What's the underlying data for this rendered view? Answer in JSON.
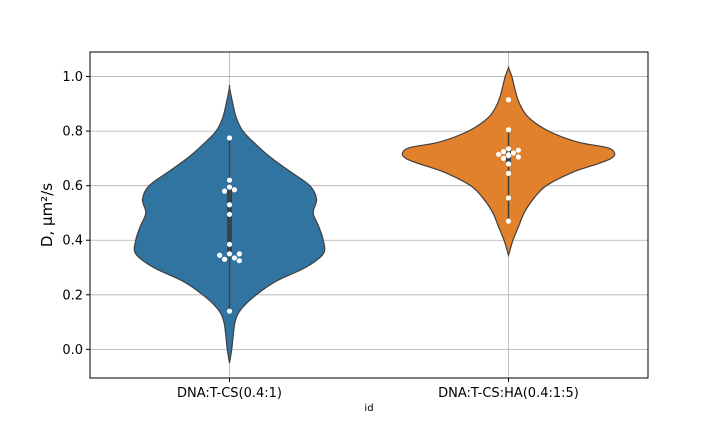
{
  "chart_data": {
    "type": "violin",
    "categories": [
      "DNA:T-CS(0.4:1)",
      "DNA:T-CS:HA(0.4:1:5)"
    ],
    "xlabel": "id",
    "ylabel": "D, µm²/s",
    "ylim": [
      -0.105,
      1.09
    ],
    "yticks": [
      0.0,
      0.2,
      0.4,
      0.6,
      0.8,
      1.0
    ],
    "ytick_labels": [
      "0.0",
      "0.2",
      "0.4",
      "0.6",
      "0.8",
      "1.0"
    ],
    "grid": true,
    "series": [
      {
        "category": "DNA:T-CS(0.4:1)",
        "color": "#3274a1",
        "points": [
          0.775,
          0.62,
          0.595,
          0.585,
          0.58,
          0.53,
          0.495,
          0.385,
          0.35,
          0.35,
          0.345,
          0.335,
          0.33,
          0.325,
          0.14
        ],
        "density": [
          [
            -0.05,
            0.0
          ],
          [
            0.0,
            0.02
          ],
          [
            0.1,
            0.05
          ],
          [
            0.15,
            0.11
          ],
          [
            0.2,
            0.24
          ],
          [
            0.25,
            0.42
          ],
          [
            0.3,
            0.68
          ],
          [
            0.35,
            0.84
          ],
          [
            0.4,
            0.84
          ],
          [
            0.45,
            0.8
          ],
          [
            0.5,
            0.75
          ],
          [
            0.55,
            0.78
          ],
          [
            0.6,
            0.72
          ],
          [
            0.65,
            0.55
          ],
          [
            0.7,
            0.38
          ],
          [
            0.75,
            0.24
          ],
          [
            0.8,
            0.12
          ],
          [
            0.85,
            0.06
          ],
          [
            0.9,
            0.03
          ],
          [
            0.96,
            0.0
          ]
        ],
        "box": {
          "whisker_low": 0.14,
          "whisker_high": 0.775,
          "q1": 0.34,
          "q3": 0.585,
          "median": 0.385
        }
      },
      {
        "category": "DNA:T-CS:HA(0.4:1:5)",
        "color": "#e1812c",
        "points": [
          0.915,
          0.805,
          0.735,
          0.73,
          0.725,
          0.72,
          0.715,
          0.71,
          0.705,
          0.7,
          0.68,
          0.645,
          0.555,
          0.47
        ],
        "density": [
          [
            0.345,
            0.0
          ],
          [
            0.4,
            0.04
          ],
          [
            0.45,
            0.09
          ],
          [
            0.5,
            0.14
          ],
          [
            0.55,
            0.22
          ],
          [
            0.6,
            0.34
          ],
          [
            0.65,
            0.58
          ],
          [
            0.68,
            0.8
          ],
          [
            0.7,
            0.92
          ],
          [
            0.72,
            0.95
          ],
          [
            0.74,
            0.88
          ],
          [
            0.76,
            0.62
          ],
          [
            0.8,
            0.36
          ],
          [
            0.85,
            0.18
          ],
          [
            0.9,
            0.1
          ],
          [
            0.95,
            0.06
          ],
          [
            1.0,
            0.03
          ],
          [
            1.032,
            0.0
          ]
        ],
        "box": {
          "whisker_low": 0.47,
          "whisker_high": 0.805,
          "q1": 0.68,
          "q3": 0.73,
          "median": 0.715
        }
      }
    ]
  }
}
